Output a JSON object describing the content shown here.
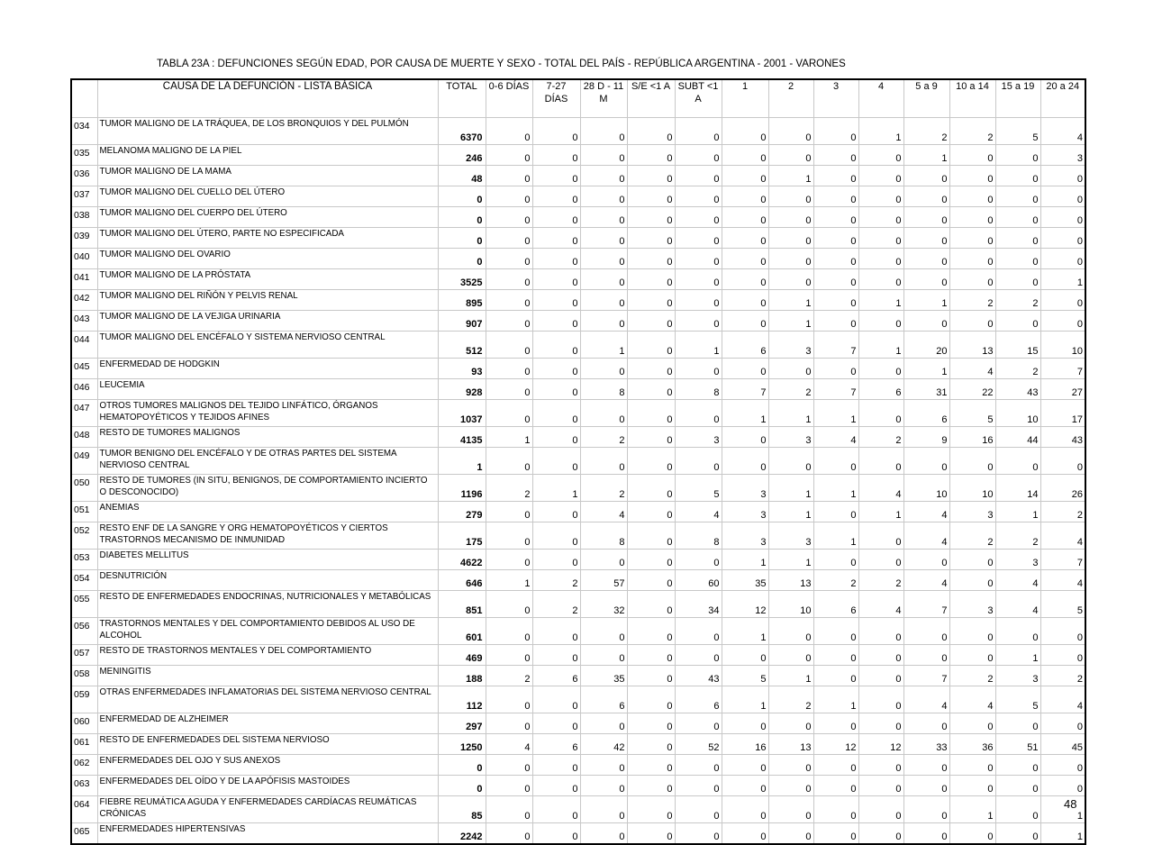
{
  "title": "TABLA 23A : DEFUNCIONES SEGÚN EDAD, POR CAUSA DE MUERTE Y SEXO - TOTAL DEL PAÍS - REPÚBLICA ARGENTINA - 2001 - VARONES",
  "page_number": "48",
  "columns": [
    "",
    "CAUSA DE LA DEFUNCIÓN - LISTA BÁSICA",
    "TOTAL",
    "0-6 DÍAS",
    "7-27 DÍAS",
    "28 D - 11 M",
    "S/E <1 A",
    "SUBT <1 A",
    "1",
    "2",
    "3",
    "4",
    "5 a 9",
    "10 a 14",
    "15 a 19",
    "20 a 24"
  ],
  "rows": [
    {
      "code": "034",
      "cause": "TUMOR MALIGNO DE LA TRÁQUEA,  DE LOS BRONQUIOS Y DEL PULMÓN",
      "values": [
        6370,
        0,
        0,
        0,
        0,
        0,
        0,
        0,
        0,
        1,
        2,
        2,
        5,
        4
      ]
    },
    {
      "code": "035",
      "cause": "MELANOMA MALIGNO DE LA PIEL",
      "values": [
        246,
        0,
        0,
        0,
        0,
        0,
        0,
        0,
        0,
        0,
        1,
        0,
        0,
        3
      ]
    },
    {
      "code": "036",
      "cause": "TUMOR MALIGNO DE LA MAMA",
      "values": [
        48,
        0,
        0,
        0,
        0,
        0,
        0,
        1,
        0,
        0,
        0,
        0,
        0,
        0
      ]
    },
    {
      "code": "037",
      "cause": "TUMOR MALIGNO DEL CUELLO DEL ÚTERO",
      "values": [
        0,
        0,
        0,
        0,
        0,
        0,
        0,
        0,
        0,
        0,
        0,
        0,
        0,
        0
      ]
    },
    {
      "code": "038",
      "cause": "TUMOR MALIGNO DEL CUERPO DEL ÚTERO",
      "values": [
        0,
        0,
        0,
        0,
        0,
        0,
        0,
        0,
        0,
        0,
        0,
        0,
        0,
        0
      ]
    },
    {
      "code": "039",
      "cause": "TUMOR MALIGNO DEL ÚTERO, PARTE NO ESPECIFICADA",
      "values": [
        0,
        0,
        0,
        0,
        0,
        0,
        0,
        0,
        0,
        0,
        0,
        0,
        0,
        0
      ]
    },
    {
      "code": "040",
      "cause": "TUMOR MALIGNO DEL OVARIO",
      "values": [
        0,
        0,
        0,
        0,
        0,
        0,
        0,
        0,
        0,
        0,
        0,
        0,
        0,
        0
      ]
    },
    {
      "code": "041",
      "cause": "TUMOR MALIGNO DE LA PRÓSTATA",
      "values": [
        3525,
        0,
        0,
        0,
        0,
        0,
        0,
        0,
        0,
        0,
        0,
        0,
        0,
        1
      ]
    },
    {
      "code": "042",
      "cause": "TUMOR MALIGNO DEL RIÑÓN Y PELVIS RENAL",
      "values": [
        895,
        0,
        0,
        0,
        0,
        0,
        0,
        1,
        0,
        1,
        1,
        2,
        2,
        0
      ]
    },
    {
      "code": "043",
      "cause": "TUMOR MALIGNO DE LA VEJIGA URINARIA",
      "values": [
        907,
        0,
        0,
        0,
        0,
        0,
        0,
        1,
        0,
        0,
        0,
        0,
        0,
        0
      ]
    },
    {
      "code": "044",
      "cause": "TUMOR MALIGNO DEL ENCÉFALO Y SISTEMA NERVIOSO CENTRAL",
      "tall": true,
      "values": [
        512,
        0,
        0,
        1,
        0,
        1,
        6,
        3,
        7,
        1,
        20,
        13,
        15,
        10
      ]
    },
    {
      "code": "045",
      "cause": "ENFERMEDAD DE HODGKIN",
      "values": [
        93,
        0,
        0,
        0,
        0,
        0,
        0,
        0,
        0,
        0,
        1,
        4,
        2,
        7
      ]
    },
    {
      "code": "046",
      "cause": "LEUCEMIA",
      "values": [
        928,
        0,
        0,
        8,
        0,
        8,
        7,
        2,
        7,
        6,
        31,
        22,
        43,
        27
      ]
    },
    {
      "code": "047",
      "cause": "OTROS TUMORES MALIGNOS DEL TEJIDO LINFÁTICO, ÓRGANOS HEMATOPOYÉTICOS Y TEJIDOS AFINES",
      "values": [
        1037,
        0,
        0,
        0,
        0,
        0,
        1,
        1,
        1,
        0,
        6,
        5,
        10,
        17
      ]
    },
    {
      "code": "048",
      "cause": "RESTO DE TUMORES MALIGNOS",
      "values": [
        4135,
        1,
        0,
        2,
        0,
        3,
        0,
        3,
        4,
        2,
        9,
        16,
        44,
        43
      ]
    },
    {
      "code": "049",
      "cause": "TUMOR BENIGNO DEL ENCÉFALO Y DE OTRAS PARTES DEL SISTEMA NERVIOSO CENTRAL",
      "values": [
        1,
        0,
        0,
        0,
        0,
        0,
        0,
        0,
        0,
        0,
        0,
        0,
        0,
        0
      ]
    },
    {
      "code": "050",
      "cause": "RESTO DE TUMORES (IN SITU, BENIGNOS, DE COMPORTAMIENTO INCIERTO O DESCONOCIDO)",
      "values": [
        1196,
        2,
        1,
        2,
        0,
        5,
        3,
        1,
        1,
        4,
        10,
        10,
        14,
        26
      ]
    },
    {
      "code": "051",
      "cause": "ANEMIAS",
      "values": [
        279,
        0,
        0,
        4,
        0,
        4,
        3,
        1,
        0,
        1,
        4,
        3,
        1,
        2
      ]
    },
    {
      "code": "052",
      "cause": "RESTO ENF DE LA SANGRE Y ORG HEMATOPOYÉTICOS Y CIERTOS TRASTORNOS MECANISMO DE  INMUNIDAD",
      "values": [
        175,
        0,
        0,
        8,
        0,
        8,
        3,
        3,
        1,
        0,
        4,
        2,
        2,
        4
      ]
    },
    {
      "code": "053",
      "cause": "DIABETES MELLITUS",
      "values": [
        4622,
        0,
        0,
        0,
        0,
        0,
        1,
        1,
        0,
        0,
        0,
        0,
        3,
        7
      ]
    },
    {
      "code": "054",
      "cause": "DESNUTRICIÓN",
      "values": [
        646,
        1,
        2,
        57,
        0,
        60,
        35,
        13,
        2,
        2,
        4,
        0,
        4,
        4
      ]
    },
    {
      "code": "055",
      "cause": "RESTO DE ENFERMEDADES ENDOCRINAS, NUTRICIONALES Y METABÓLICAS",
      "values": [
        851,
        0,
        2,
        32,
        0,
        34,
        12,
        10,
        6,
        4,
        7,
        3,
        4,
        5
      ]
    },
    {
      "code": "056",
      "cause": "TRASTORNOS MENTALES Y DEL COMPORTAMIENTO DEBIDOS AL USO DE ALCOHOL",
      "values": [
        601,
        0,
        0,
        0,
        0,
        0,
        1,
        0,
        0,
        0,
        0,
        0,
        0,
        0
      ]
    },
    {
      "code": "057",
      "cause": "RESTO DE TRASTORNOS MENTALES Y DEL COMPORTAMIENTO",
      "values": [
        469,
        0,
        0,
        0,
        0,
        0,
        0,
        0,
        0,
        0,
        0,
        0,
        1,
        0
      ]
    },
    {
      "code": "058",
      "cause": "MENINGITIS",
      "values": [
        188,
        2,
        6,
        35,
        0,
        43,
        5,
        1,
        0,
        0,
        7,
        2,
        3,
        2
      ]
    },
    {
      "code": "059",
      "cause": "OTRAS ENFERMEDADES INFLAMATORIAS DEL SISTEMA NERVIOSO CENTRAL",
      "values": [
        112,
        0,
        0,
        6,
        0,
        6,
        1,
        2,
        1,
        0,
        4,
        4,
        5,
        4
      ]
    },
    {
      "code": "060",
      "cause": "ENFERMEDAD DE ALZHEIMER",
      "values": [
        297,
        0,
        0,
        0,
        0,
        0,
        0,
        0,
        0,
        0,
        0,
        0,
        0,
        0
      ]
    },
    {
      "code": "061",
      "cause": "RESTO DE ENFERMEDADES DEL SISTEMA NERVIOSO",
      "values": [
        1250,
        4,
        6,
        42,
        0,
        52,
        16,
        13,
        12,
        12,
        33,
        36,
        51,
        45
      ]
    },
    {
      "code": "062",
      "cause": "ENFERMEDADES DEL OJO Y SUS ANEXOS",
      "values": [
        0,
        0,
        0,
        0,
        0,
        0,
        0,
        0,
        0,
        0,
        0,
        0,
        0,
        0
      ]
    },
    {
      "code": "063",
      "cause": "ENFERMEDADES DEL OÍDO Y DE LA APÓFISIS MASTOIDES",
      "values": [
        0,
        0,
        0,
        0,
        0,
        0,
        0,
        0,
        0,
        0,
        0,
        0,
        0,
        0
      ]
    },
    {
      "code": "064",
      "cause": "FIEBRE REUMÁTICA AGUDA Y ENFERMEDADES CARDÍACAS REUMÁTICAS CRÓNICAS",
      "values": [
        85,
        0,
        0,
        0,
        0,
        0,
        0,
        0,
        0,
        0,
        0,
        1,
        0,
        1
      ]
    },
    {
      "code": "065",
      "cause": "ENFERMEDADES HIPERTENSIVAS",
      "values": [
        2242,
        0,
        0,
        0,
        0,
        0,
        0,
        0,
        0,
        0,
        0,
        0,
        0,
        1
      ]
    }
  ]
}
